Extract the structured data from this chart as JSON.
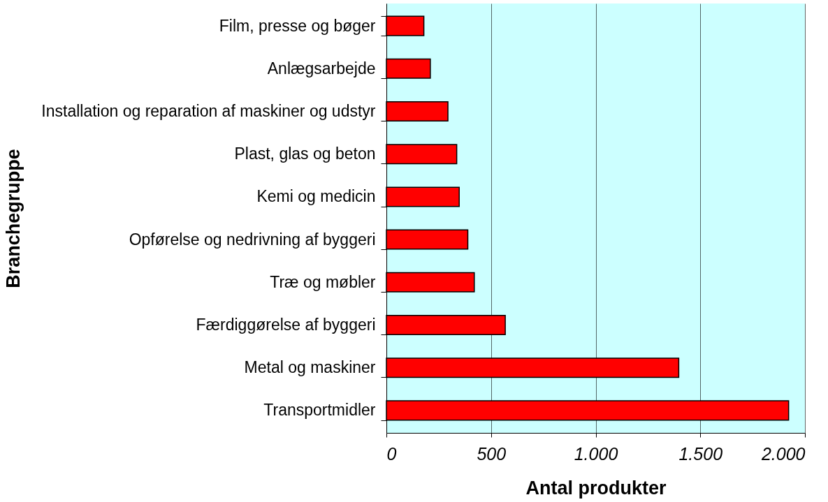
{
  "chart_data": {
    "type": "bar",
    "orientation": "horizontal",
    "xlabel": "Antal produkter",
    "ylabel": "Branchegruppe",
    "categories": [
      "Film, presse og bøger",
      "Anlægsarbejde",
      "Installation og reparation af maskiner og udstyr",
      "Plast, glas og beton",
      "Kemi og medicin",
      "Opførelse og nedrivning af byggeri",
      "Træ og møbler",
      "Færdiggørelse af byggeri",
      "Metal og maskiner",
      "Transportmidler"
    ],
    "values": [
      179,
      210,
      294,
      336,
      348,
      389,
      420,
      568,
      1397,
      1922
    ],
    "color": "#ff0000",
    "xlim": [
      0,
      2000
    ],
    "xticks": [
      0,
      {
        "value": 500,
        "label": "500"
      },
      {
        "value": 1000,
        "label": "1.000"
      },
      {
        "value": 1500,
        "label": "1.500"
      },
      {
        "value": 2000,
        "label": "2.000"
      }
    ],
    "grid": "x"
  }
}
